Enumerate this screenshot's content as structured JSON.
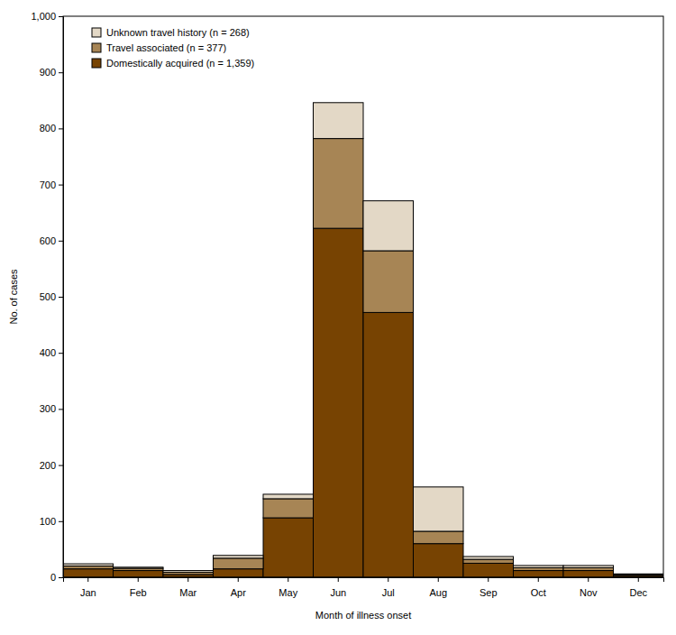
{
  "chart_data": {
    "type": "bar",
    "stacked": true,
    "legend": "upper left",
    "x_label": "Month of illness onset",
    "y_label": "No. of cases",
    "categories": [
      "Jan",
      "Feb",
      "Mar",
      "Apr",
      "May",
      "Jun",
      "Jul",
      "Aug",
      "Sep",
      "Oct",
      "Nov",
      "Dec"
    ],
    "series": [
      {
        "name": "Domestically acquired (n = 1,359)",
        "color": "#774302",
        "values": [
          15,
          12,
          5,
          15,
          106,
          622,
          472,
          60,
          25,
          12,
          12,
          3
        ]
      },
      {
        "name": "Travel associated (n = 377)",
        "color": "#a78555",
        "values": [
          5,
          4,
          4,
          19,
          34,
          160,
          110,
          22,
          7,
          5,
          5,
          2
        ]
      },
      {
        "name": "Unknown travel history (n = 268)",
        "color": "#e3d8c6",
        "values": [
          4,
          2,
          3,
          5,
          8,
          64,
          89,
          79,
          5,
          4,
          4,
          1
        ]
      }
    ],
    "ylim": [
      0,
      1000
    ],
    "yticks": [
      0,
      100,
      200,
      300,
      400,
      500,
      600,
      700,
      800,
      900,
      {
        "value": 1000,
        "label": "1,000"
      }
    ]
  }
}
